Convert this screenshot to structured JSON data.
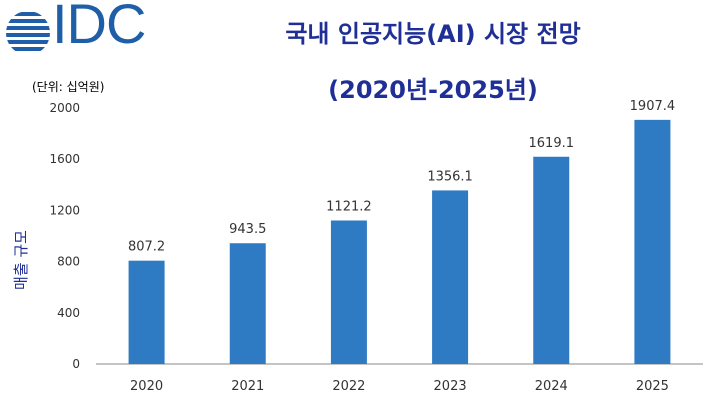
{
  "logo": {
    "text": "IDC",
    "color": "#1f5fa8"
  },
  "colors": {
    "title": "#1f2f96",
    "bar": "#2e7bc4",
    "axis": "#888888",
    "text": "#333333"
  },
  "chart_data": {
    "type": "bar",
    "title": "국내 인공지능(AI) 시장 전망",
    "subtitle": "(2020년-2025년)",
    "unit_note": "(단위: 십억원)",
    "ylabel": "매출 규모",
    "xlabel": "",
    "categories": [
      "2020",
      "2021",
      "2022",
      "2023",
      "2024",
      "2025"
    ],
    "values": [
      807.2,
      943.5,
      1121.2,
      1356.1,
      1619.1,
      1907.4
    ],
    "data_labels": [
      "807.2",
      "943.5",
      "1121.2",
      "1356.1",
      "1619.1",
      "1907.4"
    ],
    "ylim": [
      0,
      2000
    ],
    "yticks": [
      0,
      400,
      800,
      1200,
      1600,
      2000
    ],
    "grid": false,
    "legend": "none"
  }
}
